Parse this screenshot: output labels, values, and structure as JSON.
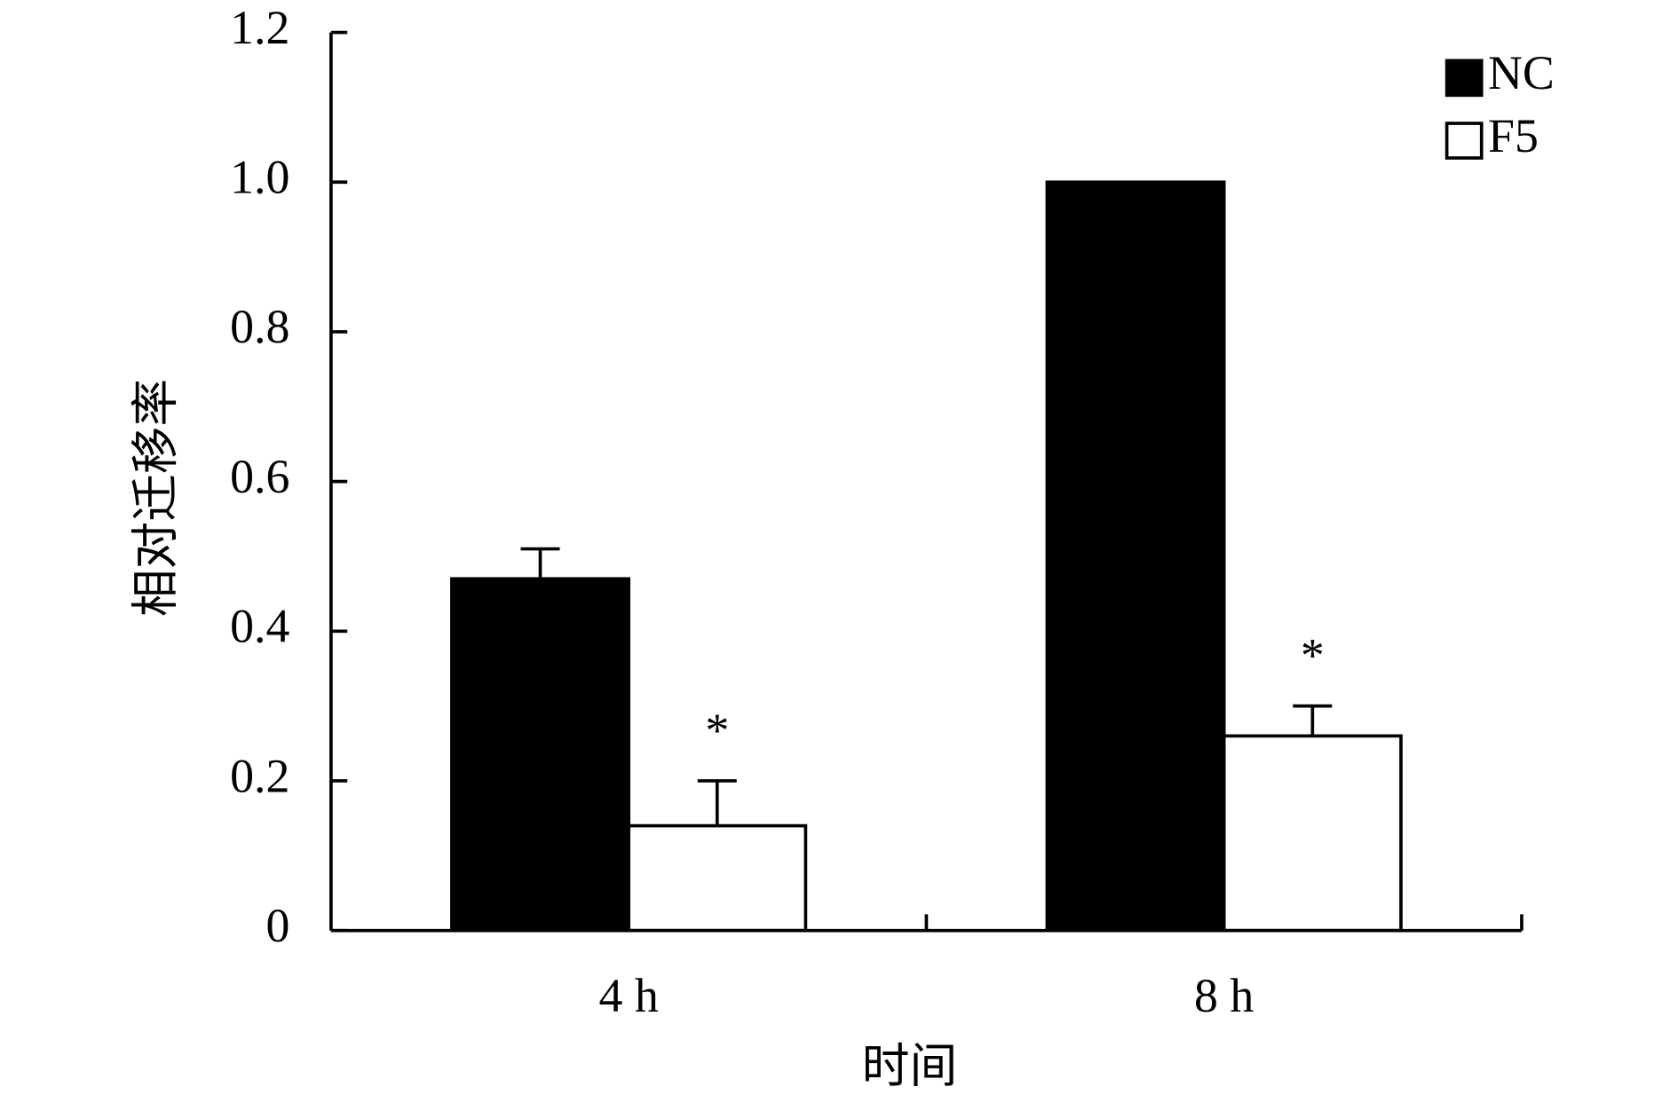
{
  "chart_data": {
    "type": "bar",
    "x_label": "时间",
    "y_label": "相对迁移率",
    "categories": [
      "4 h",
      "8 h"
    ],
    "series": [
      {
        "name": "NC",
        "color": "#000000",
        "values": [
          0.47,
          1.0
        ],
        "errors": [
          0.04,
          null
        ]
      },
      {
        "name": "F5",
        "color": "#ffffff",
        "values": [
          0.14,
          0.26
        ],
        "errors": [
          0.06,
          0.04
        ],
        "annotations": [
          "*",
          "*"
        ]
      }
    ],
    "ylim": [
      0,
      1.2
    ],
    "yticks": [
      0,
      {
        "value": 0.2,
        "label": "0.2"
      },
      {
        "value": 0.4,
        "label": "0.4"
      },
      {
        "value": 0.6,
        "label": "0.6"
      },
      {
        "value": 0.8,
        "label": "0.8"
      },
      {
        "value": 1.0,
        "label": "1.0"
      },
      {
        "value": 1.2,
        "label": "1.2"
      }
    ],
    "legend": "top-right"
  }
}
